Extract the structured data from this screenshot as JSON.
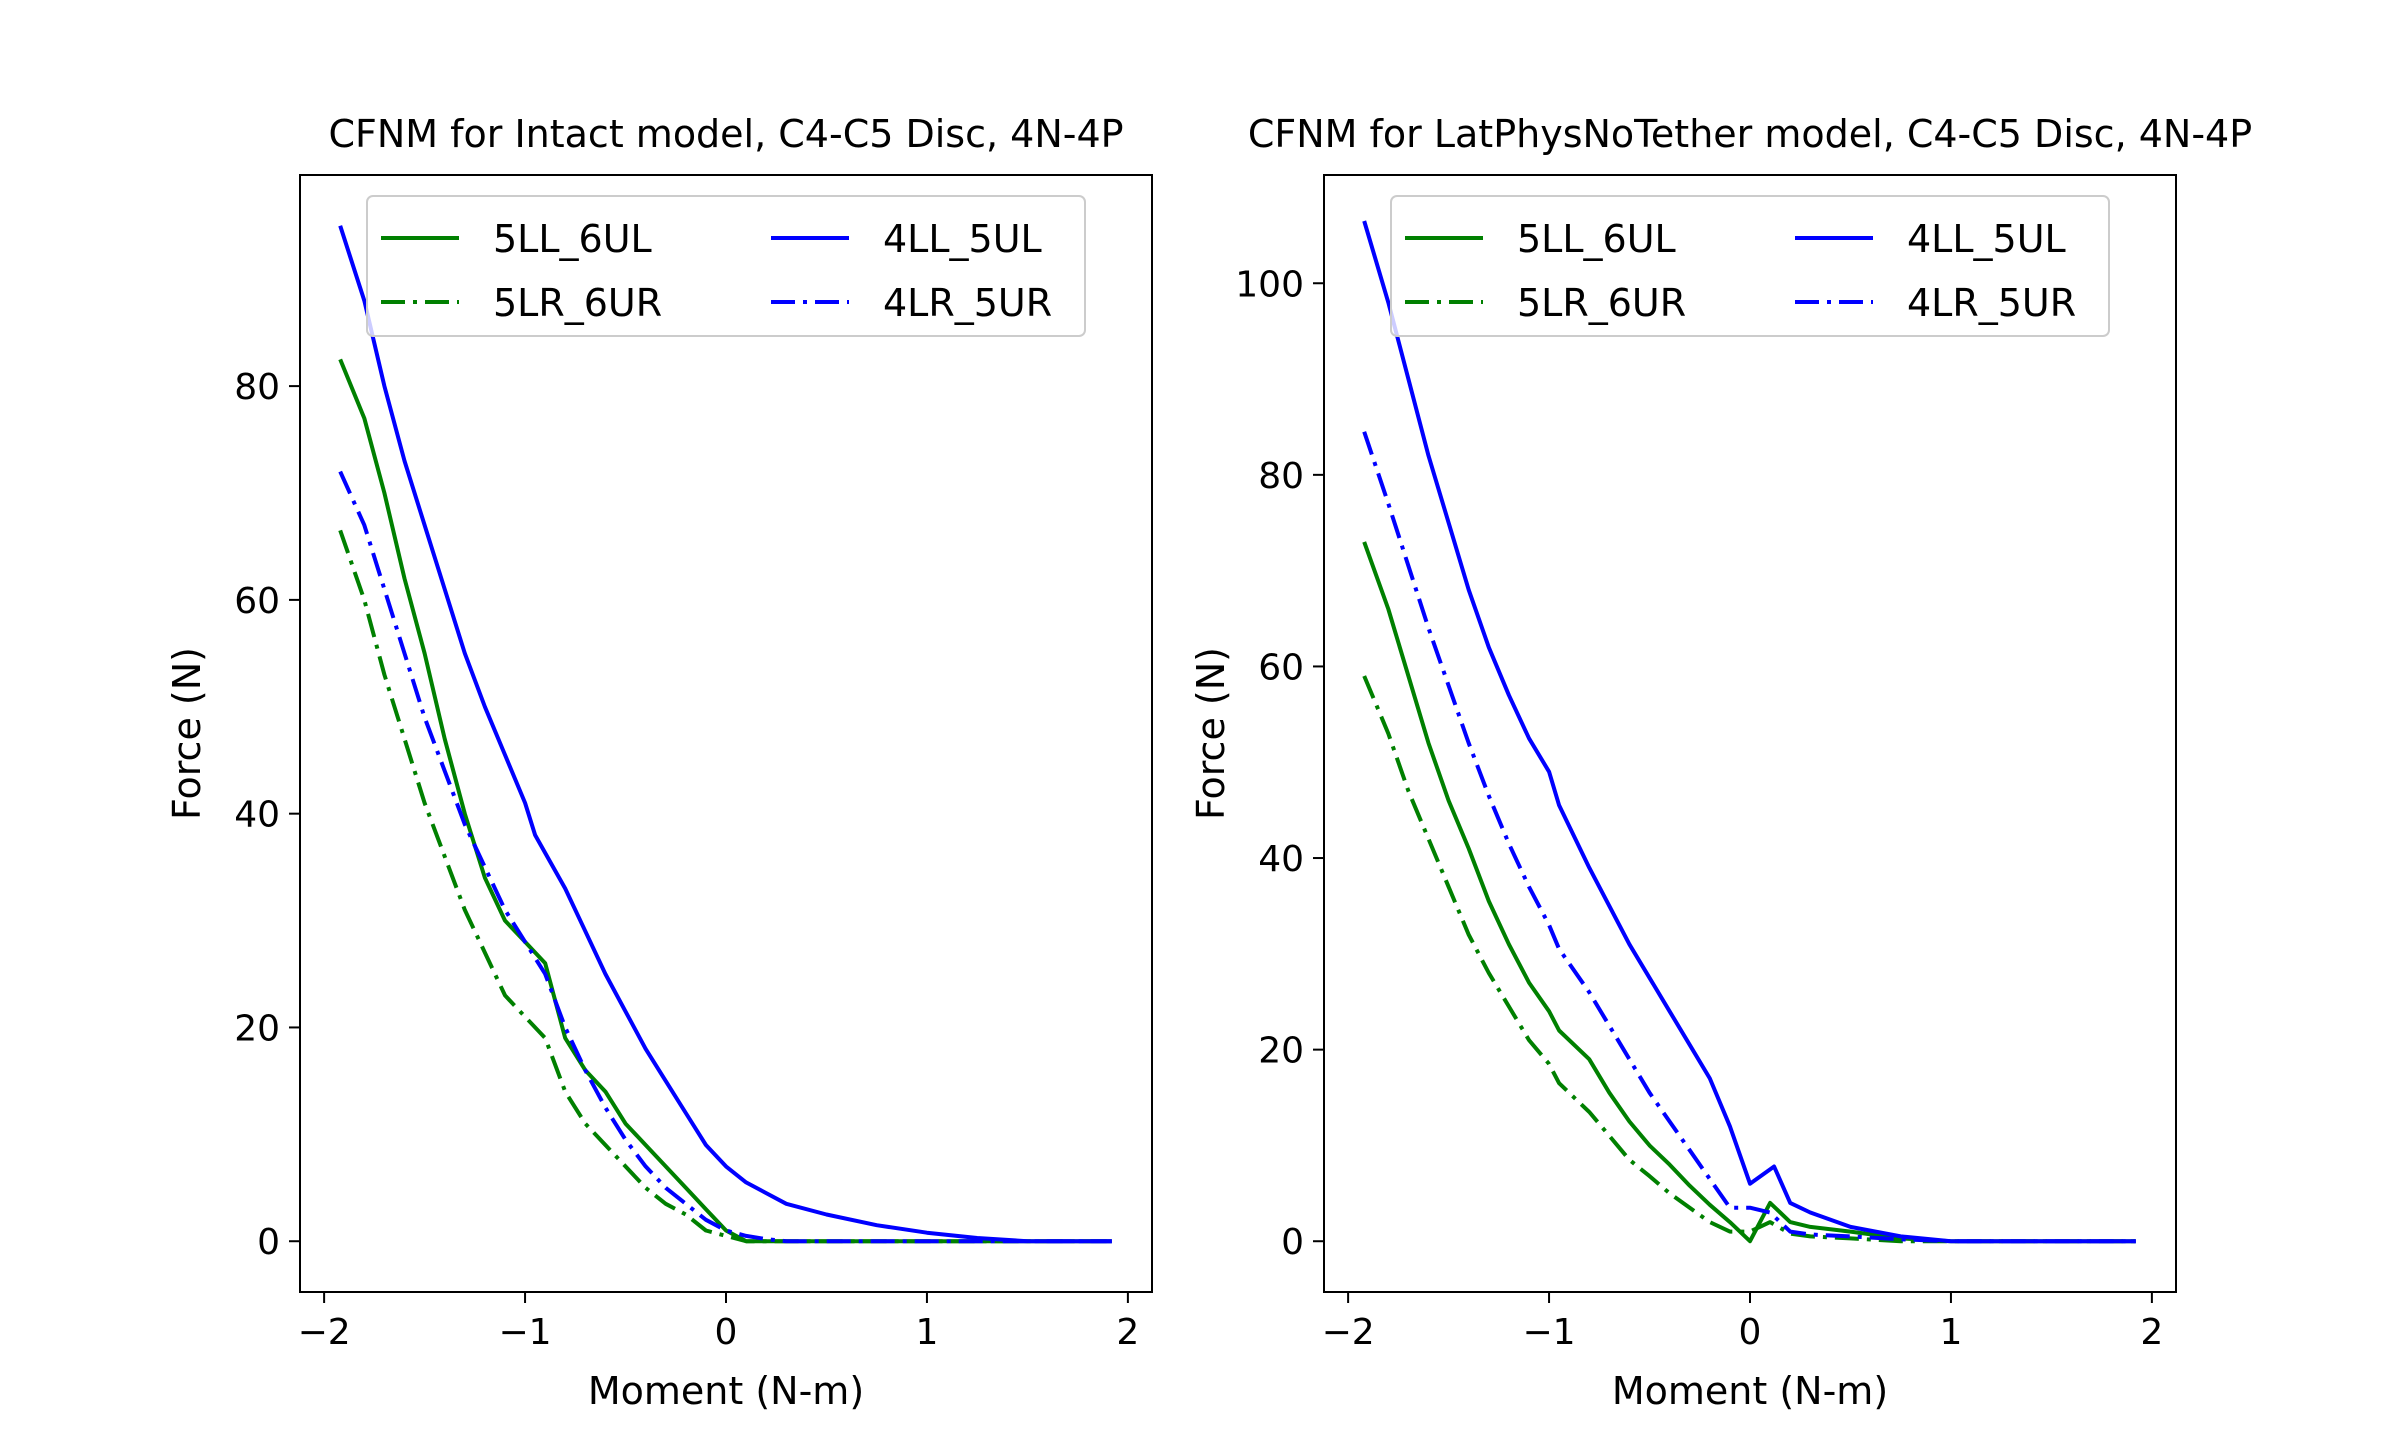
{
  "chart_data": [
    {
      "type": "line",
      "title": "CFNM for Intact model, C4-C5 Disc, 4N-4P",
      "xlabel": "Moment (N-m)",
      "ylabel": "Force (N)",
      "xlim": [
        -2.12,
        2.12
      ],
      "ylim": [
        -4.75,
        99.75
      ],
      "xticks": [
        -2,
        -1,
        0,
        1,
        2
      ],
      "xtick_labels": [
        "−2",
        "−1",
        "0",
        "1",
        "2"
      ],
      "yticks": [
        0,
        20,
        40,
        60,
        80
      ],
      "ytick_labels": [
        "0",
        "20",
        "40",
        "60",
        "80"
      ],
      "grid": false,
      "legend": {
        "placement": "upper center",
        "columns": 2
      },
      "series": [
        {
          "name": "5LL_6UL",
          "color": "#008000",
          "style": "solid",
          "x": [
            -1.92,
            -1.8,
            -1.7,
            -1.6,
            -1.5,
            -1.4,
            -1.3,
            -1.2,
            -1.1,
            -1.0,
            -0.9,
            -0.8,
            -0.7,
            -0.6,
            -0.5,
            -0.4,
            -0.3,
            -0.2,
            -0.1,
            0.0,
            0.1,
            0.2,
            0.3,
            0.5,
            1.0,
            1.5,
            1.92
          ],
          "y": [
            82.5,
            77,
            70,
            62,
            55,
            47,
            40,
            34,
            30,
            28,
            26,
            19,
            16,
            14,
            11,
            9,
            7,
            5,
            3,
            1,
            0,
            0,
            0,
            0,
            0,
            0,
            0
          ]
        },
        {
          "name": "5LR_6UR",
          "color": "#008000",
          "style": "dashdot",
          "x": [
            -1.92,
            -1.8,
            -1.7,
            -1.6,
            -1.5,
            -1.4,
            -1.3,
            -1.2,
            -1.1,
            -1.0,
            -0.9,
            -0.8,
            -0.7,
            -0.6,
            -0.5,
            -0.4,
            -0.3,
            -0.2,
            -0.1,
            0.0,
            0.1,
            0.2,
            0.3,
            0.5,
            1.0,
            1.5,
            1.92
          ],
          "y": [
            66.5,
            60,
            53,
            47,
            41,
            36,
            31,
            27,
            23,
            21,
            19,
            14,
            11,
            9,
            7,
            5,
            3.5,
            2.5,
            1,
            0.5,
            0,
            0,
            0,
            0,
            0,
            0,
            0
          ]
        },
        {
          "name": "4LL_5UL",
          "color": "#0000ff",
          "style": "solid",
          "x": [
            -1.92,
            -1.8,
            -1.7,
            -1.6,
            -1.5,
            -1.4,
            -1.3,
            -1.2,
            -1.1,
            -1.0,
            -0.95,
            -0.8,
            -0.7,
            -0.6,
            -0.5,
            -0.4,
            -0.3,
            -0.2,
            -0.1,
            0.0,
            0.1,
            0.2,
            0.3,
            0.5,
            0.75,
            1.0,
            1.25,
            1.5,
            1.6,
            1.75,
            1.92
          ],
          "y": [
            95,
            88,
            80,
            73,
            67,
            61,
            55,
            50,
            45.5,
            41,
            38,
            33,
            29,
            25,
            21.5,
            18,
            15,
            12,
            9,
            7,
            5.5,
            4.5,
            3.5,
            2.5,
            1.5,
            0.8,
            0.3,
            0,
            0,
            0,
            0
          ]
        },
        {
          "name": "4LR_5UR",
          "color": "#0000ff",
          "style": "dashdot",
          "x": [
            -1.92,
            -1.8,
            -1.7,
            -1.6,
            -1.5,
            -1.4,
            -1.3,
            -1.2,
            -1.1,
            -1.0,
            -0.9,
            -0.8,
            -0.7,
            -0.6,
            -0.5,
            -0.4,
            -0.3,
            -0.2,
            -0.1,
            0.0,
            0.1,
            0.2,
            0.3,
            0.5,
            1.0,
            1.5,
            1.92
          ],
          "y": [
            72,
            67,
            61,
            55,
            49,
            44,
            39,
            35,
            31,
            28,
            25,
            20,
            16,
            12.5,
            9.5,
            7,
            5,
            3.5,
            2,
            1,
            0.5,
            0.2,
            0,
            0,
            0,
            0,
            0
          ]
        }
      ]
    },
    {
      "type": "line",
      "title": "CFNM for LatPhysNoTether model, C4-C5 Disc, 4N-4P",
      "xlabel": "Moment (N-m)",
      "ylabel": "Force (N)",
      "xlim": [
        -2.12,
        2.12
      ],
      "ylim": [
        -5.3,
        111.3
      ],
      "xticks": [
        -2,
        -1,
        0,
        1,
        2
      ],
      "xtick_labels": [
        "−2",
        "−1",
        "0",
        "1",
        "2"
      ],
      "yticks": [
        0,
        20,
        40,
        60,
        80,
        100
      ],
      "ytick_labels": [
        "0",
        "20",
        "40",
        "60",
        "80",
        "100"
      ],
      "grid": false,
      "legend": {
        "placement": "upper center",
        "columns": 2
      },
      "series": [
        {
          "name": "5LL_6UL",
          "color": "#008000",
          "style": "solid",
          "x": [
            -1.92,
            -1.8,
            -1.7,
            -1.6,
            -1.5,
            -1.4,
            -1.3,
            -1.2,
            -1.1,
            -1.0,
            -0.95,
            -0.8,
            -0.7,
            -0.6,
            -0.5,
            -0.4,
            -0.3,
            -0.2,
            -0.1,
            0.0,
            0.1,
            0.2,
            0.3,
            0.5,
            0.75,
            1.0,
            1.25,
            1.5,
            1.92
          ],
          "y": [
            73,
            66,
            59,
            52,
            46,
            41,
            35.5,
            31,
            27,
            24,
            22,
            19,
            15.5,
            12.5,
            10,
            8,
            5.8,
            3.8,
            2,
            0,
            4,
            2,
            1.5,
            1,
            0.3,
            0,
            0,
            0,
            0
          ]
        },
        {
          "name": "5LR_6UR",
          "color": "#008000",
          "style": "dashdot",
          "x": [
            -1.92,
            -1.8,
            -1.7,
            -1.6,
            -1.5,
            -1.4,
            -1.3,
            -1.2,
            -1.1,
            -1.0,
            -0.95,
            -0.8,
            -0.7,
            -0.6,
            -0.5,
            -0.4,
            -0.3,
            -0.2,
            -0.1,
            0.0,
            0.1,
            0.2,
            0.3,
            0.5,
            0.75,
            1.0,
            1.25,
            1.5,
            1.92
          ],
          "y": [
            59,
            53,
            47,
            42,
            37,
            32,
            28,
            24.5,
            21,
            18.5,
            16.5,
            13.5,
            11,
            8.5,
            6.8,
            5,
            3.5,
            2,
            1,
            1,
            2,
            0.8,
            0.5,
            0.3,
            0,
            0,
            0,
            0,
            0
          ]
        },
        {
          "name": "4LL_5UL",
          "color": "#0000ff",
          "style": "solid",
          "x": [
            -1.92,
            -1.8,
            -1.7,
            -1.6,
            -1.5,
            -1.4,
            -1.3,
            -1.2,
            -1.1,
            -1.0,
            -0.95,
            -0.8,
            -0.7,
            -0.6,
            -0.5,
            -0.4,
            -0.3,
            -0.2,
            -0.1,
            0.0,
            0.12,
            0.2,
            0.3,
            0.5,
            0.75,
            1.0,
            1.25,
            1.5,
            1.92
          ],
          "y": [
            106.5,
            98,
            90,
            82,
            75,
            68,
            62,
            57,
            52.5,
            49,
            45.5,
            39,
            35,
            31,
            27.5,
            24,
            20.5,
            17,
            12,
            6,
            7.8,
            4,
            3,
            1.5,
            0.5,
            0,
            0,
            0,
            0
          ]
        },
        {
          "name": "4LR_5UR",
          "color": "#0000ff",
          "style": "dashdot",
          "x": [
            -1.92,
            -1.8,
            -1.7,
            -1.6,
            -1.5,
            -1.4,
            -1.3,
            -1.2,
            -1.1,
            -1.0,
            -0.95,
            -0.8,
            -0.7,
            -0.6,
            -0.5,
            -0.4,
            -0.3,
            -0.2,
            -0.1,
            0.0,
            0.1,
            0.2,
            0.3,
            0.5,
            0.75,
            1.0,
            1.25,
            1.5,
            1.92
          ],
          "y": [
            84.5,
            77,
            70.5,
            64,
            58,
            52,
            46.5,
            41.5,
            37,
            33,
            30.5,
            26,
            22.5,
            19,
            15.5,
            12.5,
            9.5,
            6.5,
            3.5,
            3.5,
            3,
            1,
            0.7,
            0.5,
            0.2,
            0,
            0,
            0,
            0
          ]
        }
      ]
    }
  ]
}
